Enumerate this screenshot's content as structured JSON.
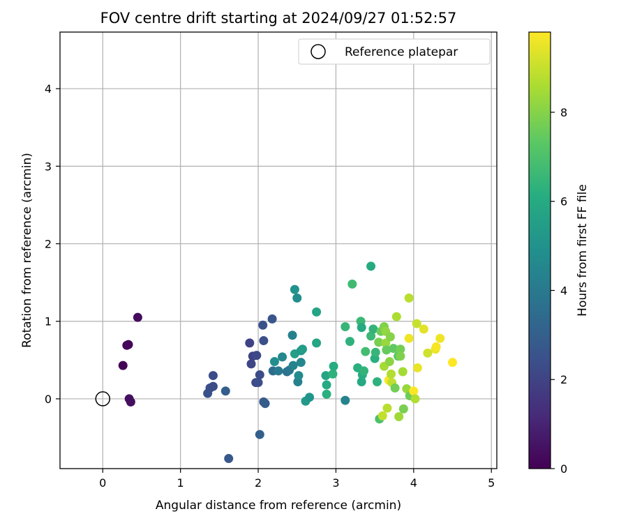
{
  "chart_data": {
    "type": "scatter",
    "title": "FOV centre drift starting at 2024/09/27 01:52:57",
    "xlabel": "Angular distance from reference (arcmin)",
    "ylabel": "Rotation from reference (arcmin)",
    "xlim": [
      -0.55,
      5.07
    ],
    "ylim": [
      -0.9,
      4.73
    ],
    "xticks": [
      "0",
      "1",
      "2",
      "3",
      "4",
      "5"
    ],
    "yticks": [
      "0",
      "1",
      "2",
      "3",
      "4"
    ],
    "grid": true,
    "legend": {
      "label": "Reference platepar",
      "placement": "top-right"
    },
    "reference_point": {
      "x": 0,
      "y": 0
    },
    "colorbar": {
      "label": "Hours from first FF file",
      "range": [
        0,
        9.8
      ],
      "ticks": [
        "0",
        "2",
        "4",
        "6",
        "8"
      ],
      "colormap": "viridis"
    },
    "points": [
      {
        "x": 0.26,
        "y": 0.43,
        "t": 0.1
      },
      {
        "x": 0.31,
        "y": 0.69,
        "t": 0.2
      },
      {
        "x": 0.33,
        "y": 0.7,
        "t": 0.2
      },
      {
        "x": 0.45,
        "y": 1.05,
        "t": 0.3
      },
      {
        "x": 0.34,
        "y": 0.0,
        "t": 0.4
      },
      {
        "x": 0.36,
        "y": -0.04,
        "t": 0.4
      },
      {
        "x": 1.35,
        "y": 0.07,
        "t": 2.5
      },
      {
        "x": 1.38,
        "y": 0.14,
        "t": 2.4
      },
      {
        "x": 1.42,
        "y": 0.16,
        "t": 2.3
      },
      {
        "x": 1.42,
        "y": 0.3,
        "t": 2.3
      },
      {
        "x": 1.58,
        "y": 0.1,
        "t": 3.0
      },
      {
        "x": 1.62,
        "y": -0.77,
        "t": 2.7
      },
      {
        "x": 1.89,
        "y": 0.72,
        "t": 2.0
      },
      {
        "x": 1.91,
        "y": 0.45,
        "t": 2.1
      },
      {
        "x": 1.93,
        "y": 0.55,
        "t": 2.0
      },
      {
        "x": 1.97,
        "y": 0.21,
        "t": 2.2
      },
      {
        "x": 1.98,
        "y": 0.56,
        "t": 2.2
      },
      {
        "x": 2.0,
        "y": 0.21,
        "t": 2.4
      },
      {
        "x": 2.02,
        "y": 0.31,
        "t": 2.3
      },
      {
        "x": 2.02,
        "y": -0.46,
        "t": 3.0
      },
      {
        "x": 2.06,
        "y": 0.95,
        "t": 2.5
      },
      {
        "x": 2.07,
        "y": 0.75,
        "t": 2.4
      },
      {
        "x": 2.07,
        "y": -0.04,
        "t": 2.8
      },
      {
        "x": 2.09,
        "y": -0.06,
        "t": 2.9
      },
      {
        "x": 2.18,
        "y": 1.03,
        "t": 2.6
      },
      {
        "x": 2.19,
        "y": 0.36,
        "t": 3.5
      },
      {
        "x": 2.21,
        "y": 0.48,
        "t": 4.8
      },
      {
        "x": 2.26,
        "y": 0.36,
        "t": 4.0
      },
      {
        "x": 2.31,
        "y": 0.54,
        "t": 4.6
      },
      {
        "x": 2.37,
        "y": 0.35,
        "t": 3.7
      },
      {
        "x": 2.4,
        "y": 0.37,
        "t": 3.9
      },
      {
        "x": 2.44,
        "y": 0.82,
        "t": 4.3
      },
      {
        "x": 2.45,
        "y": 0.43,
        "t": 4.4
      },
      {
        "x": 2.47,
        "y": 1.41,
        "t": 5.0
      },
      {
        "x": 2.47,
        "y": 0.58,
        "t": 5.5
      },
      {
        "x": 2.5,
        "y": 1.3,
        "t": 4.8
      },
      {
        "x": 2.51,
        "y": 0.22,
        "t": 4.3
      },
      {
        "x": 2.52,
        "y": 0.3,
        "t": 4.7
      },
      {
        "x": 2.55,
        "y": 0.47,
        "t": 4.5
      },
      {
        "x": 2.55,
        "y": 0.62,
        "t": 5.2
      },
      {
        "x": 2.57,
        "y": 0.64,
        "t": 5.4
      },
      {
        "x": 2.61,
        "y": -0.03,
        "t": 5.3
      },
      {
        "x": 2.66,
        "y": 0.02,
        "t": 5.1
      },
      {
        "x": 2.75,
        "y": 1.12,
        "t": 5.7
      },
      {
        "x": 2.75,
        "y": 0.72,
        "t": 5.8
      },
      {
        "x": 2.87,
        "y": 0.3,
        "t": 5.8
      },
      {
        "x": 2.88,
        "y": 0.18,
        "t": 6.0
      },
      {
        "x": 2.88,
        "y": 0.06,
        "t": 6.2
      },
      {
        "x": 2.96,
        "y": 0.32,
        "t": 6.3
      },
      {
        "x": 2.97,
        "y": 0.42,
        "t": 6.1
      },
      {
        "x": 3.12,
        "y": -0.02,
        "t": 4.4
      },
      {
        "x": 3.12,
        "y": 0.93,
        "t": 6.5
      },
      {
        "x": 3.18,
        "y": 0.74,
        "t": 6.3
      },
      {
        "x": 3.21,
        "y": 1.48,
        "t": 6.7
      },
      {
        "x": 3.28,
        "y": 0.4,
        "t": 6.2
      },
      {
        "x": 3.32,
        "y": 1.0,
        "t": 6.6
      },
      {
        "x": 3.33,
        "y": 0.92,
        "t": 6.0
      },
      {
        "x": 3.33,
        "y": 0.22,
        "t": 5.9
      },
      {
        "x": 3.34,
        "y": 0.31,
        "t": 6.1
      },
      {
        "x": 3.36,
        "y": 0.36,
        "t": 6.4
      },
      {
        "x": 3.38,
        "y": 0.61,
        "t": 6.8
      },
      {
        "x": 3.45,
        "y": 1.71,
        "t": 6.0
      },
      {
        "x": 3.45,
        "y": 0.81,
        "t": 6.6
      },
      {
        "x": 3.48,
        "y": 0.9,
        "t": 6.4
      },
      {
        "x": 3.5,
        "y": 0.52,
        "t": 6.2
      },
      {
        "x": 3.51,
        "y": 0.6,
        "t": 6.5
      },
      {
        "x": 3.53,
        "y": 0.22,
        "t": 6.3
      },
      {
        "x": 3.55,
        "y": 0.73,
        "t": 7.8
      },
      {
        "x": 3.56,
        "y": -0.26,
        "t": 7.0
      },
      {
        "x": 3.58,
        "y": 0.87,
        "t": 7.6
      },
      {
        "x": 3.6,
        "y": -0.22,
        "t": 8.9
      },
      {
        "x": 3.62,
        "y": 0.93,
        "t": 7.9
      },
      {
        "x": 3.62,
        "y": 0.42,
        "t": 8.5
      },
      {
        "x": 3.64,
        "y": 0.87,
        "t": 8.2
      },
      {
        "x": 3.64,
        "y": 0.72,
        "t": 8.3
      },
      {
        "x": 3.65,
        "y": 0.63,
        "t": 7.5
      },
      {
        "x": 3.66,
        "y": -0.12,
        "t": 8.8
      },
      {
        "x": 3.68,
        "y": 0.24,
        "t": 9.7
      },
      {
        "x": 3.69,
        "y": 0.48,
        "t": 8.1
      },
      {
        "x": 3.7,
        "y": 0.8,
        "t": 8.0
      },
      {
        "x": 3.71,
        "y": 0.32,
        "t": 8.7
      },
      {
        "x": 3.72,
        "y": 0.21,
        "t": 8.9
      },
      {
        "x": 3.74,
        "y": 0.65,
        "t": 7.4
      },
      {
        "x": 3.76,
        "y": 0.14,
        "t": 7.7
      },
      {
        "x": 3.78,
        "y": 1.06,
        "t": 8.6
      },
      {
        "x": 3.8,
        "y": 0.55,
        "t": 7.3
      },
      {
        "x": 3.81,
        "y": -0.23,
        "t": 8.4
      },
      {
        "x": 3.83,
        "y": 0.64,
        "t": 7.7
      },
      {
        "x": 3.83,
        "y": 0.55,
        "t": 7.9
      },
      {
        "x": 3.86,
        "y": 0.35,
        "t": 8.5
      },
      {
        "x": 3.87,
        "y": -0.13,
        "t": 7.8
      },
      {
        "x": 3.91,
        "y": 0.13,
        "t": 8.3
      },
      {
        "x": 3.94,
        "y": 1.3,
        "t": 8.8
      },
      {
        "x": 3.94,
        "y": 0.78,
        "t": 9.6
      },
      {
        "x": 3.95,
        "y": 0.04,
        "t": 7.6
      },
      {
        "x": 4.0,
        "y": 0.1,
        "t": 9.8
      },
      {
        "x": 4.02,
        "y": 0.0,
        "t": 8.7
      },
      {
        "x": 4.04,
        "y": 0.97,
        "t": 9.0
      },
      {
        "x": 4.05,
        "y": 0.4,
        "t": 9.5
      },
      {
        "x": 4.13,
        "y": 0.9,
        "t": 9.4
      },
      {
        "x": 4.18,
        "y": 0.59,
        "t": 9.1
      },
      {
        "x": 4.28,
        "y": 0.64,
        "t": 9.5
      },
      {
        "x": 4.29,
        "y": 0.67,
        "t": 9.7
      },
      {
        "x": 4.34,
        "y": 0.78,
        "t": 9.6
      },
      {
        "x": 4.5,
        "y": 0.47,
        "t": 9.8
      }
    ]
  }
}
